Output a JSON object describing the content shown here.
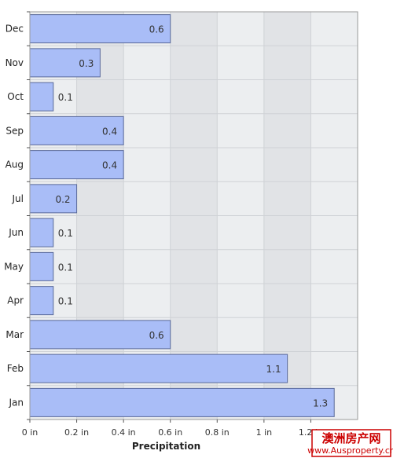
{
  "chart_data": {
    "type": "bar",
    "orientation": "horizontal",
    "categories": [
      "Jan",
      "Feb",
      "Mar",
      "Apr",
      "May",
      "Jun",
      "Jul",
      "Aug",
      "Sep",
      "Oct",
      "Nov",
      "Dec"
    ],
    "values": [
      1.3,
      1.1,
      0.6,
      0.1,
      0.1,
      0.1,
      0.2,
      0.4,
      0.4,
      0.1,
      0.3,
      0.6
    ],
    "data_labels": [
      "1.3",
      "1.1",
      "0.6",
      "0.1",
      "0.1",
      "0.1",
      "0.2",
      "0.4",
      "0.4",
      "0.1",
      "0.3",
      "0.6"
    ],
    "xlabel": "Precipitation",
    "xlim": [
      0,
      1.4
    ],
    "xticks": [
      0,
      0.2,
      0.4,
      0.6,
      0.8,
      1,
      1.2
    ],
    "xtick_labels": [
      "0 in",
      "0.2 in",
      "0.4 in",
      "0.6 in",
      "0.8 in",
      "1 in",
      "1.2 in"
    ],
    "grid": true,
    "colors": {
      "bar_fill": "#a9bdf7",
      "bar_stroke": "#5a6a9a",
      "band_light": "#eceef0",
      "band_dark": "#e1e3e6",
      "grid": "#cfd2d6",
      "axis": "#555555"
    }
  },
  "watermark": {
    "title": "澳洲房产网",
    "url": "www.Ausproperty.cn"
  }
}
